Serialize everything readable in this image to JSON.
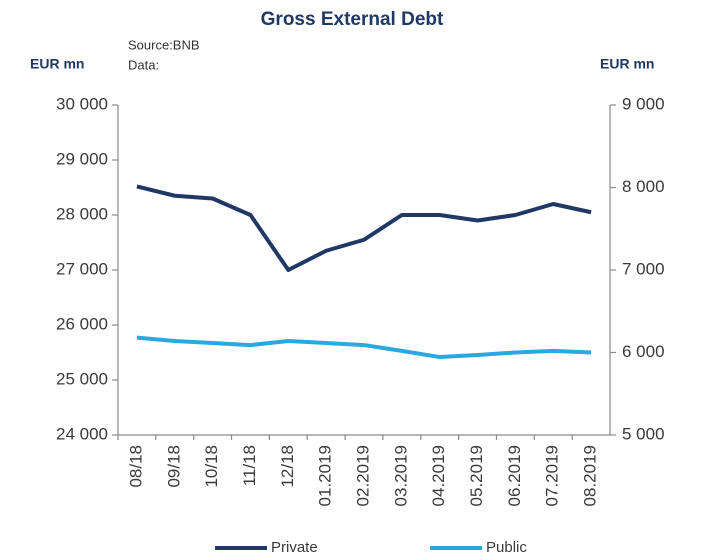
{
  "chart_data": {
    "type": "line",
    "title": "Gross External Debt",
    "source": "Source:BNB",
    "source_label": "Data:",
    "y_label": "EUR mn",
    "y2_label": "EUR mn",
    "categories": [
      "08/18",
      "09/18",
      "10/18",
      "11/18",
      "12/18",
      "01.2019",
      "02.2019",
      "03.2019",
      "04.2019",
      "05.2019",
      "06.2019",
      "07.2019",
      "08.2019"
    ],
    "series": [
      {
        "name": "Private",
        "color": "#1f3864",
        "axis": "y",
        "values": [
          28520,
          28350,
          28300,
          28000,
          27000,
          27350,
          27550,
          28000,
          28000,
          27900,
          28000,
          28200,
          28050
        ]
      },
      {
        "name": "Public",
        "color": "#2aa9e0",
        "axis": "y2",
        "values": [
          6180,
          6140,
          6115,
          6090,
          6140,
          6115,
          6090,
          6020,
          5945,
          5970,
          6000,
          6020,
          6000
        ]
      }
    ],
    "ylim": [
      24000,
      30000
    ],
    "yticks": [
      {
        "value": 24000,
        "label": "24 000"
      },
      {
        "value": 25000,
        "label": "25 000"
      },
      {
        "value": 26000,
        "label": "26 000"
      },
      {
        "value": 27000,
        "label": "27 000"
      },
      {
        "value": 28000,
        "label": "28 000"
      },
      {
        "value": 29000,
        "label": "29 000"
      },
      {
        "value": 30000,
        "label": "30 000"
      }
    ],
    "y2lim": [
      5000,
      9000
    ],
    "y2ticks": [
      {
        "value": 5000,
        "label": "5 000"
      },
      {
        "value": 6000,
        "label": "6 000"
      },
      {
        "value": 7000,
        "label": "7 000"
      },
      {
        "value": 8000,
        "label": "8 000"
      },
      {
        "value": 9000,
        "label": "9 000"
      }
    ],
    "legend": "bottom"
  }
}
